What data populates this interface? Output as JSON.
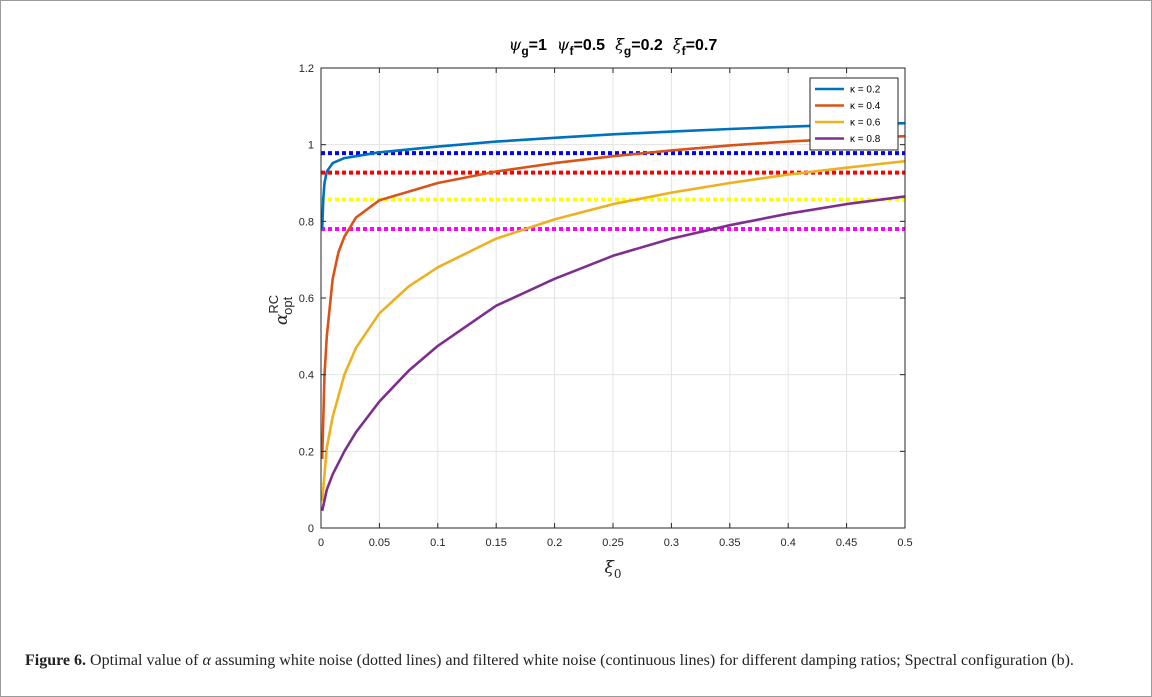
{
  "chart_data": {
    "type": "line",
    "title_parts": [
      {
        "sym": "ψ",
        "sub": "g",
        "val": "=1"
      },
      {
        "sym": "ψ",
        "sub": "f",
        "val": "=0.5"
      },
      {
        "sym": "ξ",
        "sub": "g",
        "val": "=0.2"
      },
      {
        "sym": "ξ",
        "sub": "f",
        "val": "=0.7"
      }
    ],
    "xlabel": {
      "sym": "ξ",
      "sub": "0"
    },
    "ylabel": {
      "sym": "α",
      "sup": "RC",
      "sub": "opt"
    },
    "xlim": [
      0,
      0.5
    ],
    "ylim": [
      0,
      1.2
    ],
    "xticks": [
      0,
      0.05,
      0.1,
      0.15,
      0.2,
      0.25,
      0.3,
      0.35,
      0.4,
      0.45,
      0.5
    ],
    "xtick_labels": [
      "0",
      "0.05",
      "0.1",
      "0.15",
      "0.2",
      "0.25",
      "0.3",
      "0.35",
      "0.4",
      "0.45",
      "0.5"
    ],
    "yticks": [
      0,
      0.2,
      0.4,
      0.6,
      0.8,
      1,
      1.2
    ],
    "ytick_labels": [
      "0",
      "0.2",
      "0.4",
      "0.6",
      "0.8",
      "1",
      "1.2"
    ],
    "grid": true,
    "legend_position": "top-right",
    "series": [
      {
        "name": "κ = 0.2",
        "style": "solid",
        "color": "#0072BD",
        "points": [
          [
            0.001,
            0.78
          ],
          [
            0.002,
            0.86
          ],
          [
            0.003,
            0.9
          ],
          [
            0.005,
            0.93
          ],
          [
            0.01,
            0.952
          ],
          [
            0.02,
            0.965
          ],
          [
            0.05,
            0.98
          ],
          [
            0.1,
            0.995
          ],
          [
            0.15,
            1.008
          ],
          [
            0.2,
            1.018
          ],
          [
            0.25,
            1.027
          ],
          [
            0.3,
            1.034
          ],
          [
            0.35,
            1.041
          ],
          [
            0.4,
            1.047
          ],
          [
            0.45,
            1.052
          ],
          [
            0.5,
            1.056
          ]
        ]
      },
      {
        "name": "κ = 0.4",
        "style": "solid",
        "color": "#D95319",
        "points": [
          [
            0.001,
            0.18
          ],
          [
            0.003,
            0.4
          ],
          [
            0.005,
            0.5
          ],
          [
            0.01,
            0.65
          ],
          [
            0.015,
            0.72
          ],
          [
            0.02,
            0.76
          ],
          [
            0.03,
            0.81
          ],
          [
            0.05,
            0.855
          ],
          [
            0.1,
            0.9
          ],
          [
            0.15,
            0.93
          ],
          [
            0.2,
            0.952
          ],
          [
            0.25,
            0.97
          ],
          [
            0.3,
            0.985
          ],
          [
            0.35,
            0.998
          ],
          [
            0.4,
            1.008
          ],
          [
            0.45,
            1.016
          ],
          [
            0.5,
            1.022
          ]
        ]
      },
      {
        "name": "κ = 0.6",
        "style": "solid",
        "color": "#EDB120",
        "points": [
          [
            0.001,
            0.07
          ],
          [
            0.005,
            0.21
          ],
          [
            0.01,
            0.29
          ],
          [
            0.02,
            0.4
          ],
          [
            0.03,
            0.47
          ],
          [
            0.05,
            0.56
          ],
          [
            0.075,
            0.63
          ],
          [
            0.1,
            0.68
          ],
          [
            0.15,
            0.755
          ],
          [
            0.2,
            0.805
          ],
          [
            0.25,
            0.845
          ],
          [
            0.3,
            0.875
          ],
          [
            0.35,
            0.9
          ],
          [
            0.4,
            0.922
          ],
          [
            0.45,
            0.94
          ],
          [
            0.5,
            0.957
          ]
        ]
      },
      {
        "name": "κ = 0.8",
        "style": "solid",
        "color": "#7E2F8E",
        "points": [
          [
            0.001,
            0.045
          ],
          [
            0.005,
            0.1
          ],
          [
            0.01,
            0.14
          ],
          [
            0.02,
            0.2
          ],
          [
            0.03,
            0.25
          ],
          [
            0.05,
            0.33
          ],
          [
            0.075,
            0.41
          ],
          [
            0.1,
            0.475
          ],
          [
            0.15,
            0.58
          ],
          [
            0.2,
            0.65
          ],
          [
            0.25,
            0.71
          ],
          [
            0.3,
            0.755
          ],
          [
            0.35,
            0.79
          ],
          [
            0.4,
            0.82
          ],
          [
            0.45,
            0.845
          ],
          [
            0.5,
            0.865
          ]
        ]
      },
      {
        "style": "dotted",
        "color": "#0000FF",
        "points": [
          [
            0,
            0.978
          ],
          [
            0.5,
            0.978
          ]
        ]
      },
      {
        "style": "dotted",
        "color": "#FF0000",
        "points": [
          [
            0,
            0.927
          ],
          [
            0.5,
            0.927
          ]
        ]
      },
      {
        "style": "dotted",
        "color": "#FFFF00",
        "points": [
          [
            0,
            0.857
          ],
          [
            0.5,
            0.857
          ]
        ]
      },
      {
        "style": "dotted",
        "color": "#FF00FF",
        "points": [
          [
            0,
            0.78
          ],
          [
            0.5,
            0.78
          ]
        ]
      }
    ]
  },
  "caption": {
    "label": "Figure 6.",
    "text_before_symbol": " Optimal value of ",
    "symbol": "α",
    "text_after_symbol": " assuming white noise (dotted lines) and filtered white noise (continuous lines) for different damping ratios; Spectral configuration (b)."
  }
}
